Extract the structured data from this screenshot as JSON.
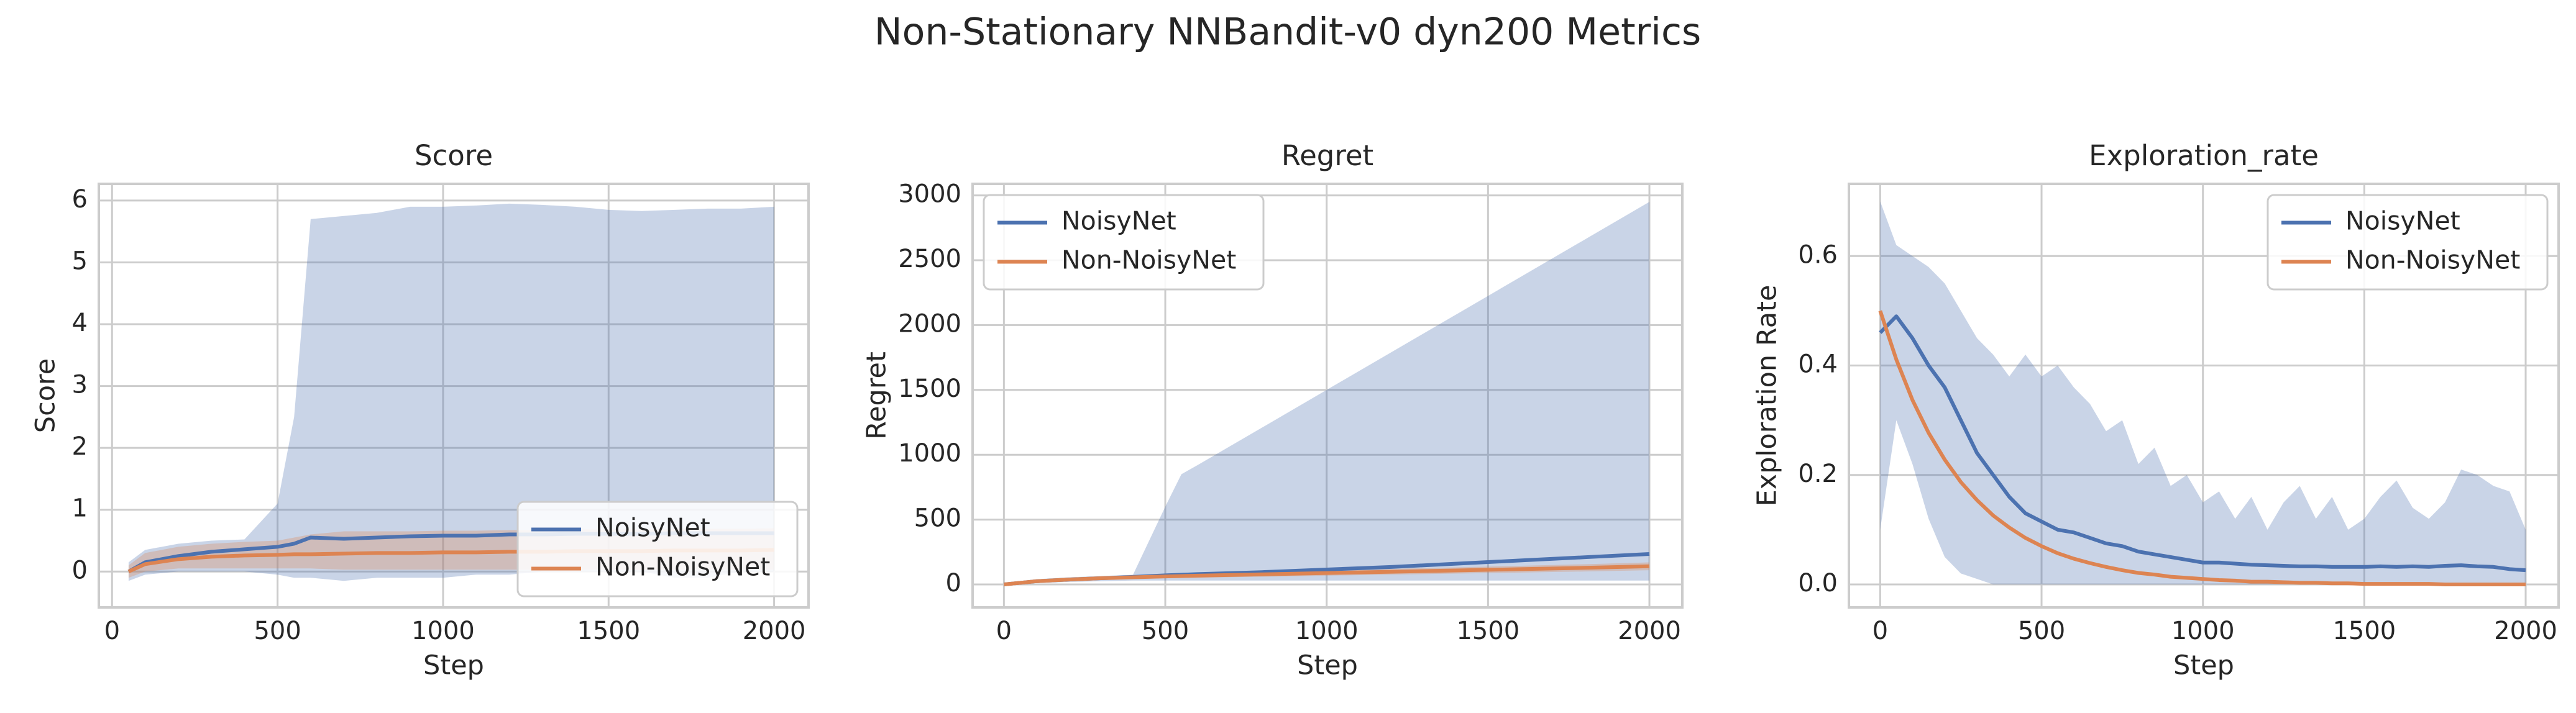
{
  "title": "Non-Stationary NNBandit-v0 dyn200 Metrics",
  "chart_data": [
    {
      "type": "line",
      "title": "Score",
      "xlabel": "Step",
      "ylabel": "Score",
      "grid": true,
      "legend": "lower right",
      "xlim": [
        -40,
        2104
      ],
      "xticks": [
        0,
        500,
        1000,
        1500,
        2000
      ],
      "ylim": [
        -0.58,
        6.27
      ],
      "yticks": [
        0,
        1,
        2,
        3,
        4,
        5,
        6
      ],
      "x": [
        50,
        100,
        200,
        300,
        400,
        500,
        550,
        600,
        700,
        800,
        900,
        1000,
        1100,
        1200,
        1300,
        1400,
        1500,
        1600,
        1700,
        1800,
        1900,
        2000
      ],
      "series": [
        {
          "name": "NoisyNet",
          "color": "#4c72b0",
          "values": [
            0.0,
            0.15,
            0.25,
            0.32,
            0.36,
            0.4,
            0.45,
            0.55,
            0.53,
            0.55,
            0.57,
            0.58,
            0.58,
            0.6,
            0.6,
            0.61,
            0.61,
            0.61,
            0.62,
            0.62,
            0.62,
            0.62
          ],
          "upper": [
            0.15,
            0.35,
            0.45,
            0.5,
            0.52,
            1.1,
            2.5,
            5.7,
            5.75,
            5.8,
            5.9,
            5.9,
            5.92,
            5.95,
            5.93,
            5.9,
            5.85,
            5.83,
            5.85,
            5.87,
            5.87,
            5.9
          ],
          "lower": [
            -0.15,
            -0.05,
            0.0,
            0.0,
            0.0,
            -0.05,
            -0.1,
            -0.1,
            -0.15,
            -0.1,
            -0.1,
            -0.1,
            -0.05,
            -0.05,
            0.0,
            0.0,
            0.0,
            0.0,
            -0.1,
            -0.1,
            0.0,
            0.0
          ]
        },
        {
          "name": "Non-NoisyNet",
          "color": "#dd8452",
          "values": [
            0.0,
            0.12,
            0.2,
            0.24,
            0.26,
            0.27,
            0.28,
            0.28,
            0.29,
            0.3,
            0.3,
            0.31,
            0.31,
            0.32,
            0.32,
            0.33,
            0.33,
            0.33,
            0.34,
            0.34,
            0.34,
            0.35
          ],
          "upper": [
            0.1,
            0.3,
            0.4,
            0.45,
            0.48,
            0.5,
            0.55,
            0.6,
            0.65,
            0.65,
            0.65,
            0.66,
            0.66,
            0.67,
            0.67,
            0.68,
            0.68,
            0.68,
            0.69,
            0.69,
            0.69,
            0.7
          ],
          "lower": [
            -0.1,
            0.0,
            0.05,
            0.05,
            0.05,
            0.05,
            0.05,
            0.05,
            0.03,
            0.03,
            0.03,
            0.03,
            0.03,
            0.03,
            0.03,
            0.03,
            0.03,
            0.03,
            0.03,
            0.03,
            0.03,
            0.03
          ]
        }
      ]
    },
    {
      "type": "line",
      "title": "Regret",
      "xlabel": "Step",
      "ylabel": "Regret",
      "grid": true,
      "legend": "upper left",
      "xlim": [
        -97,
        2102
      ],
      "xticks": [
        0,
        500,
        1000,
        1500,
        2000
      ],
      "ylim": [
        -177,
        3089
      ],
      "yticks": [
        0,
        500,
        1000,
        1500,
        2000,
        2500,
        3000
      ],
      "x": [
        0,
        100,
        200,
        300,
        400,
        500,
        550,
        600,
        800,
        1000,
        1200,
        1400,
        1600,
        1800,
        2000
      ],
      "series": [
        {
          "name": "NoisyNet",
          "color": "#4c72b0",
          "values": [
            0,
            25,
            38,
            48,
            58,
            70,
            75,
            80,
            95,
            115,
            135,
            160,
            185,
            210,
            235
          ],
          "upper": [
            5,
            40,
            55,
            65,
            75,
            600,
            850,
            920,
            1210,
            1500,
            1790,
            2080,
            2370,
            2660,
            2950
          ],
          "lower": [
            0,
            10,
            20,
            25,
            30,
            30,
            30,
            30,
            30,
            30,
            30,
            30,
            30,
            30,
            30
          ]
        },
        {
          "name": "Non-NoisyNet",
          "color": "#dd8452",
          "values": [
            0,
            25,
            38,
            48,
            55,
            62,
            65,
            68,
            78,
            88,
            98,
            108,
            118,
            128,
            140
          ],
          "upper": [
            0,
            35,
            50,
            60,
            68,
            76,
            80,
            84,
            96,
            108,
            120,
            132,
            144,
            156,
            170
          ],
          "lower": [
            0,
            15,
            26,
            36,
            42,
            48,
            50,
            52,
            60,
            68,
            76,
            84,
            92,
            100,
            110
          ]
        }
      ]
    },
    {
      "type": "line",
      "title": "Exploration_rate",
      "xlabel": "Step",
      "ylabel": "Exploration Rate",
      "grid": true,
      "legend": "upper right",
      "xlim": [
        -97,
        2102
      ],
      "xticks": [
        0,
        500,
        1000,
        1500,
        2000
      ],
      "ylim": [
        -0.042,
        0.732
      ],
      "yticks": [
        {
          "value": 0,
          "label": "0.0"
        },
        0.2,
        0.4,
        0.6
      ],
      "x": [
        0,
        50,
        100,
        150,
        200,
        250,
        300,
        350,
        400,
        450,
        500,
        550,
        600,
        650,
        700,
        750,
        800,
        850,
        900,
        950,
        1000,
        1050,
        1100,
        1150,
        1200,
        1250,
        1300,
        1350,
        1400,
        1450,
        1500,
        1550,
        1600,
        1650,
        1700,
        1750,
        1800,
        1850,
        1900,
        1950,
        2000
      ],
      "series": [
        {
          "name": "NoisyNet",
          "color": "#4c72b0",
          "values": [
            0.46,
            0.49,
            0.45,
            0.4,
            0.36,
            0.3,
            0.24,
            0.2,
            0.16,
            0.13,
            0.115,
            0.1,
            0.095,
            0.085,
            0.075,
            0.07,
            0.06,
            0.055,
            0.05,
            0.045,
            0.04,
            0.04,
            0.038,
            0.036,
            0.035,
            0.034,
            0.033,
            0.033,
            0.032,
            0.032,
            0.032,
            0.033,
            0.032,
            0.033,
            0.032,
            0.034,
            0.035,
            0.033,
            0.032,
            0.028,
            0.026
          ],
          "upper": [
            0.7,
            0.62,
            0.6,
            0.58,
            0.55,
            0.5,
            0.45,
            0.42,
            0.38,
            0.42,
            0.38,
            0.4,
            0.36,
            0.33,
            0.28,
            0.3,
            0.22,
            0.25,
            0.18,
            0.2,
            0.15,
            0.17,
            0.12,
            0.16,
            0.1,
            0.15,
            0.18,
            0.12,
            0.16,
            0.1,
            0.12,
            0.16,
            0.19,
            0.14,
            0.12,
            0.15,
            0.21,
            0.2,
            0.18,
            0.17,
            0.1
          ],
          "lower": [
            0.1,
            0.3,
            0.22,
            0.12,
            0.05,
            0.02,
            0.01,
            0,
            0,
            0,
            0,
            0,
            0,
            0,
            0,
            0,
            0,
            0,
            0,
            0,
            0,
            0,
            0,
            0,
            0,
            0,
            0,
            0,
            0,
            0,
            0,
            0,
            0,
            0,
            0,
            0,
            0,
            0,
            0,
            0,
            0
          ]
        },
        {
          "name": "Non-NoisyNet",
          "color": "#dd8452",
          "values": [
            0.5,
            0.411,
            0.337,
            0.277,
            0.228,
            0.187,
            0.154,
            0.126,
            0.104,
            0.085,
            0.07,
            0.057,
            0.047,
            0.039,
            0.032,
            0.026,
            0.021,
            0.018,
            0.014,
            0.012,
            0.01,
            0.008,
            0.007,
            0.005,
            0.005,
            0.004,
            0.003,
            0.003,
            0.002,
            0.002,
            0.001,
            0.001,
            0.001,
            0.001,
            0.001,
            0,
            0,
            0,
            0,
            0,
            0
          ]
        }
      ]
    }
  ]
}
